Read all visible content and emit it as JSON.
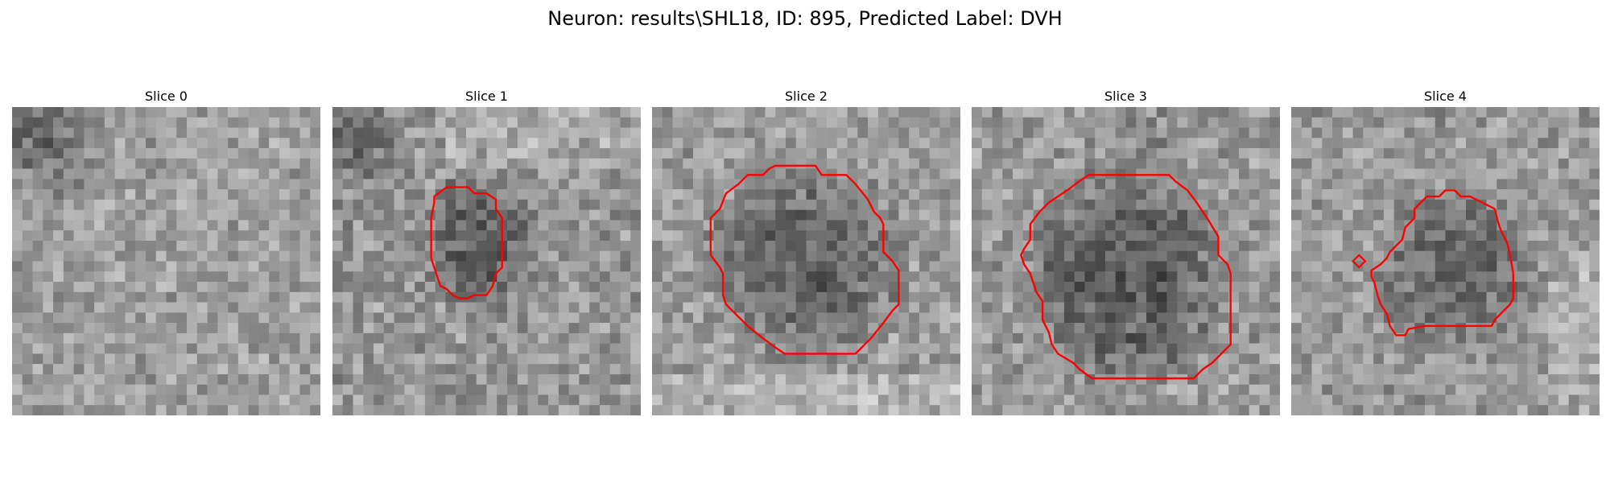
{
  "figure": {
    "title": "Neuron: results\\SHL18, ID: 895, Predicted Label: DVH",
    "contour_color": "#ff0000",
    "colormap": "grayscale",
    "grid_size": 30
  },
  "slices": [
    {
      "label": "Slice 0"
    },
    {
      "label": "Slice 1"
    },
    {
      "label": "Slice 2"
    },
    {
      "label": "Slice 3"
    },
    {
      "label": "Slice 4"
    }
  ]
}
